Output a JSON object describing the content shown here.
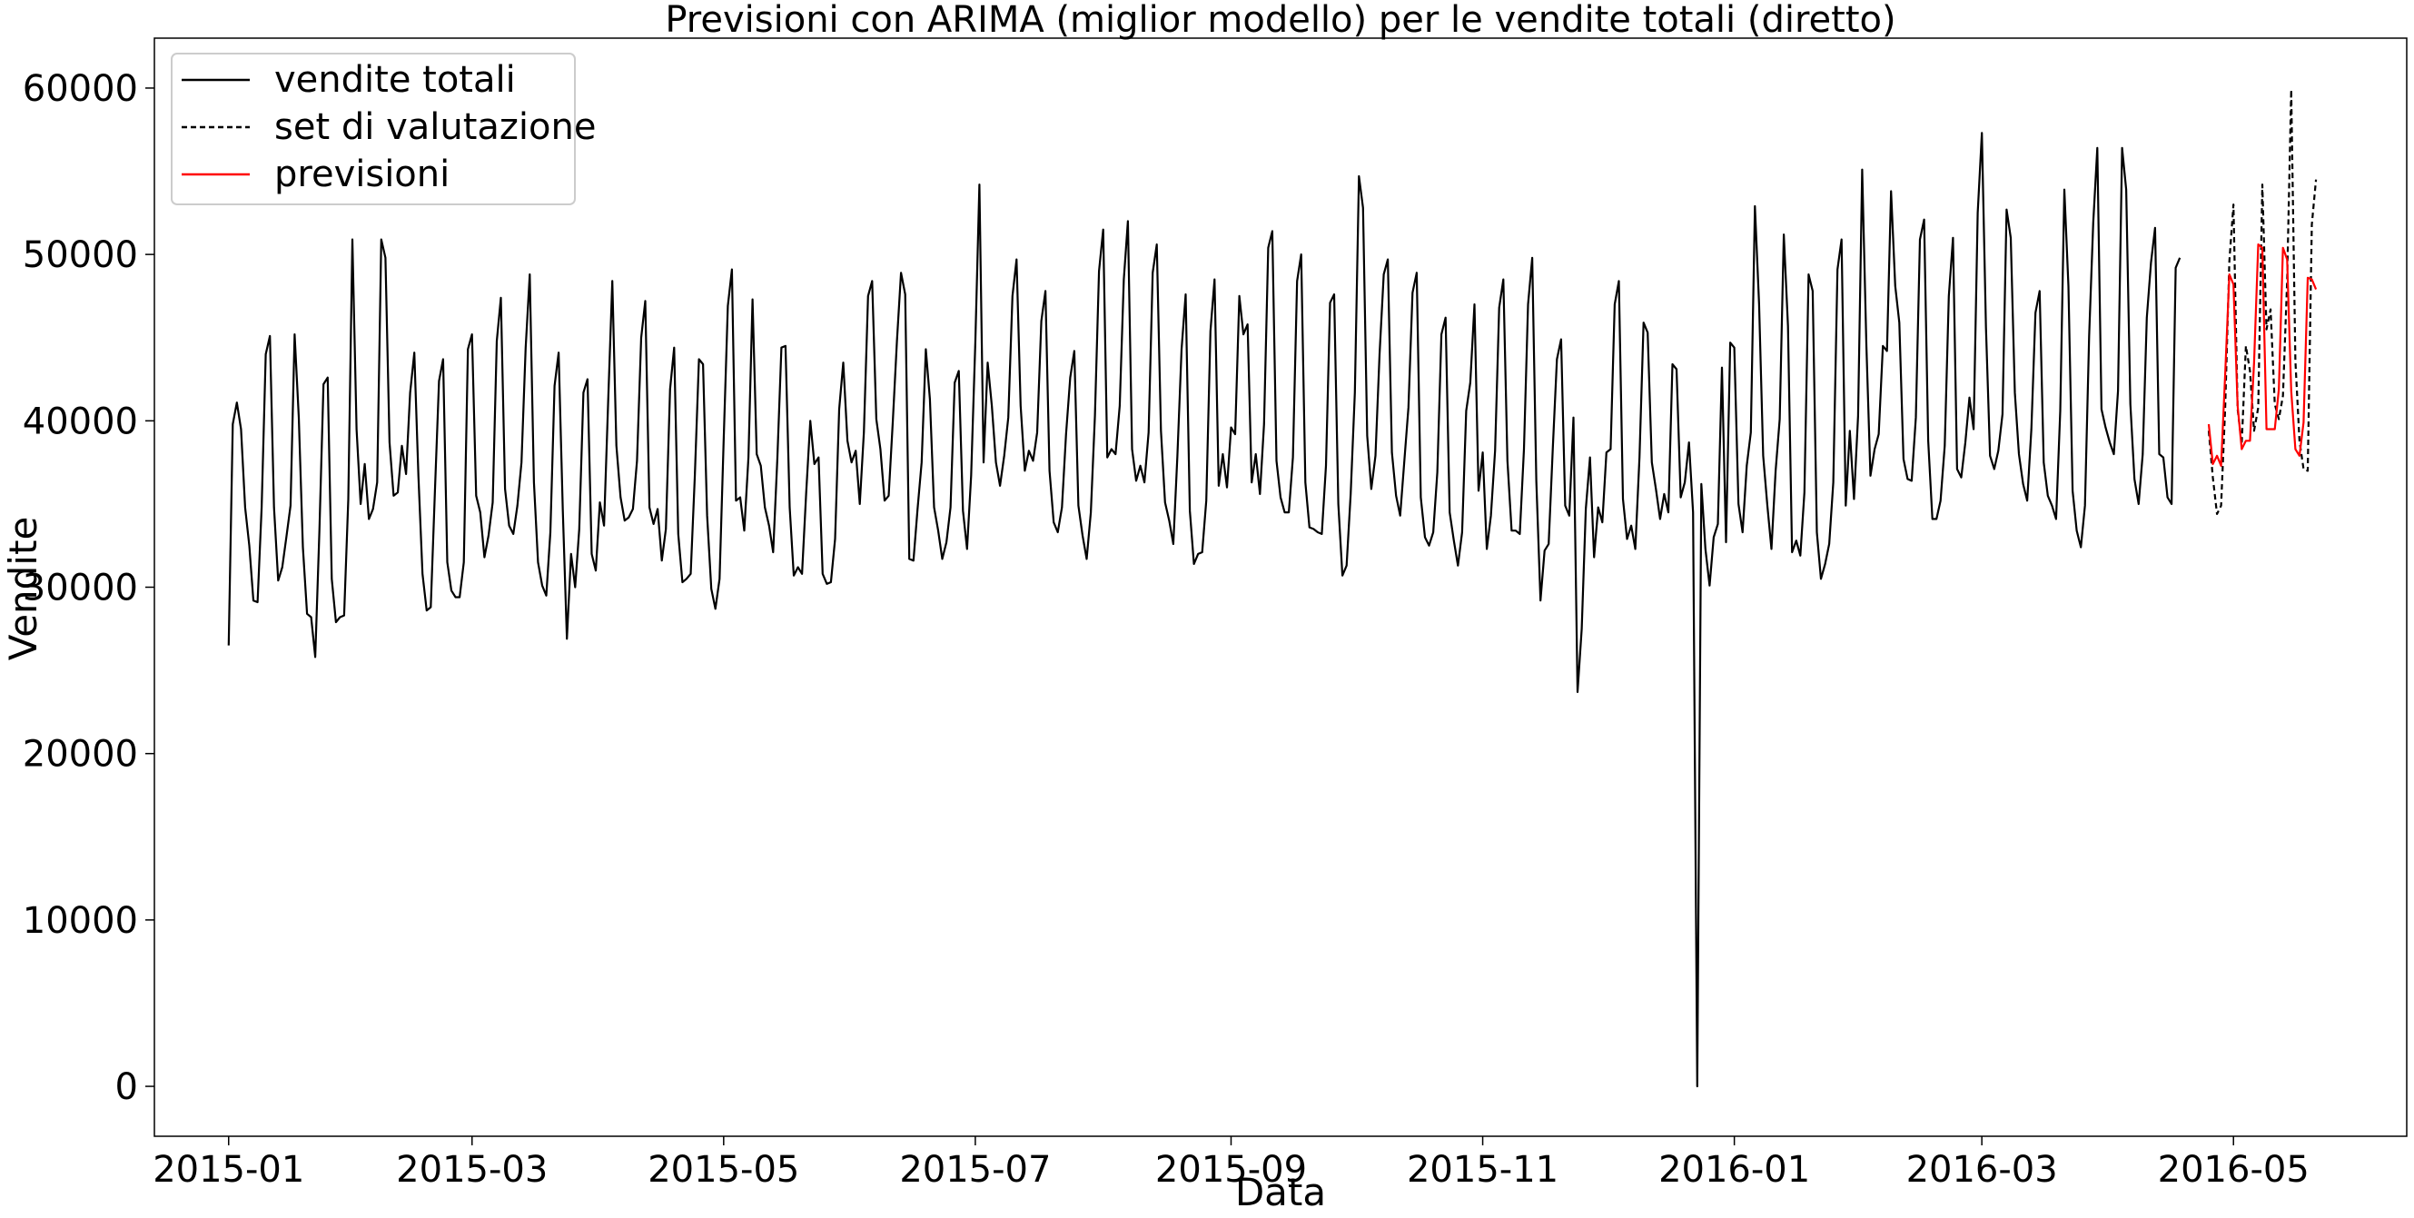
{
  "chart_data": {
    "type": "line",
    "title": "Previsioni con ARIMA (miglior modello) per le vendite totali (diretto)",
    "xlabel": "Data",
    "ylabel": "Vendite",
    "ylim": [
      -3000,
      63000
    ],
    "xlim": [
      "2014-12-14",
      "2016-06-12"
    ],
    "yticks": [
      0,
      10000,
      20000,
      30000,
      40000,
      50000,
      60000
    ],
    "xticks": [
      "2015-01",
      "2015-03",
      "2015-05",
      "2015-07",
      "2015-09",
      "2015-11",
      "2016-01",
      "2016-03",
      "2016-05"
    ],
    "grid": false,
    "legend_position": "top-left",
    "series": [
      {
        "name": "vendite totali",
        "color": "#000000",
        "style": "solid",
        "x_start": "2015-01-01",
        "step": "1 day",
        "values": [
          26500,
          39800,
          41100,
          39500,
          34800,
          32500,
          29200,
          29100,
          34800,
          44000,
          45100,
          34800,
          30400,
          31200,
          33000,
          34900,
          45200,
          40200,
          32400,
          28400,
          28200,
          25800,
          33400,
          42200,
          42600,
          30500,
          27900,
          28200,
          28300,
          35300,
          50900,
          39500,
          35000,
          37400,
          34100,
          34700,
          36300,
          50900,
          49800,
          38700,
          35500,
          35700,
          38500,
          36800,
          41700,
          44100,
          36700,
          30800,
          28600,
          28800,
          35800,
          42400,
          43700,
          31500,
          29800,
          29400,
          29400,
          31500,
          44300,
          45200,
          35500,
          34500,
          31800,
          33100,
          35100,
          44800,
          47400,
          35900,
          33700,
          33200,
          34900,
          37500,
          44400,
          48800,
          36300,
          31500,
          30100,
          29500,
          33300,
          42100,
          44100,
          34600,
          26900,
          32000,
          30000,
          33500,
          41700,
          42500,
          32000,
          31000,
          35100,
          33700,
          41100,
          48400,
          38500,
          35400,
          34000,
          34200,
          34700,
          37600,
          45000,
          47200,
          34800,
          33800,
          34700,
          31600,
          33500,
          41900,
          44400,
          33200,
          30300,
          30500,
          30800,
          36600,
          43700,
          43400,
          34300,
          29900,
          28700,
          30500,
          38800,
          46900,
          49100,
          35200,
          35400,
          33400,
          37800,
          47300,
          38000,
          37300,
          34800,
          33700,
          32100,
          37700,
          44400,
          44500,
          34800,
          30700,
          31200,
          30800,
          35700,
          40000,
          37400,
          37800,
          30800,
          30200,
          30300,
          32900,
          40700,
          43500,
          38800,
          37500,
          38200,
          35000,
          39300,
          47500,
          48400,
          40100,
          38300,
          35200,
          35500,
          39900,
          44800,
          48900,
          47600,
          31700,
          31600,
          34700,
          37500,
          44300,
          41300,
          34800,
          33400,
          31700,
          32700,
          34800,
          42300,
          43000,
          34600,
          32300,
          36700,
          44700,
          54200,
          37500,
          43500,
          40900,
          37500,
          36100,
          37900,
          40200,
          47500,
          49700,
          40900,
          37000,
          38200,
          37600,
          39300,
          46000,
          47800,
          37000,
          33900,
          33300,
          34800,
          39200,
          42600,
          44200,
          34900,
          33100,
          31700,
          34500,
          40300,
          49000,
          51500,
          37800,
          38300,
          38000,
          40900,
          48500,
          52000,
          38300,
          36400,
          37300,
          36300,
          39300,
          48900,
          50600,
          39400,
          35100,
          34000,
          32600,
          37900,
          44300,
          47600,
          34600,
          31400,
          32000,
          32100,
          35200,
          45400,
          48500,
          36100,
          38000,
          36000,
          39600,
          39200,
          47500,
          45200,
          45800,
          36300,
          38000,
          35600,
          39800,
          50400,
          51400,
          37600,
          35400,
          34500,
          34500,
          37800,
          48400,
          50000,
          36300,
          33600,
          33500,
          33300,
          33200,
          37300,
          47100,
          47600,
          35000,
          30700,
          31300,
          35600,
          41700,
          54700,
          52800,
          39100,
          35900,
          37900,
          44000,
          48800,
          49700,
          38100,
          35500,
          34300,
          37600,
          40800,
          47700,
          48900,
          35400,
          33000,
          32500,
          33300,
          36900,
          45200,
          46200,
          34500,
          32800,
          31300,
          33300,
          40600,
          42300,
          47000,
          35800,
          38100,
          32300,
          34300,
          38200,
          46800,
          48500,
          37600,
          33400,
          33400,
          33200,
          38300,
          47000,
          49800,
          36400,
          29200,
          32200,
          32600,
          38400,
          43700,
          44900,
          34900,
          34300,
          40200,
          23700,
          27500,
          34700,
          37800,
          31800,
          34800,
          33900,
          38100,
          38300,
          47000,
          48400,
          35300,
          32900,
          33700,
          32300,
          37800,
          45900,
          45300,
          37500,
          35900,
          34100,
          35600,
          34500,
          43400,
          43100,
          35400,
          36300,
          38700,
          34500,
          0,
          36200,
          32300,
          30100,
          33000,
          33800,
          43200,
          32700,
          44700,
          44400,
          35000,
          33300,
          37300,
          39300,
          52900,
          47000,
          37900,
          34900,
          32300,
          37000,
          40100,
          51200,
          45700,
          32100,
          32800,
          31900,
          35700,
          48800,
          47800,
          33300,
          30500,
          31400,
          32600,
          36300,
          49100,
          50900,
          34900,
          39400,
          35300,
          40300,
          55100,
          44600,
          36700,
          38300,
          39200,
          44500,
          44200,
          53800,
          48100,
          45900,
          37700,
          36500,
          36400,
          40200,
          50900,
          52100,
          38800,
          34100,
          34100,
          35200,
          38500,
          47500,
          51000,
          37100,
          36600,
          38700,
          41400,
          39500,
          52500,
          57300,
          45600,
          37900,
          37100,
          38200,
          40400,
          52700,
          51000,
          41700,
          38000,
          36200,
          35200,
          39500,
          46500,
          47800,
          37500,
          35500,
          34900,
          34100,
          40600,
          53900,
          48100,
          35800,
          33400,
          32400,
          34900,
          45100,
          51900,
          56400,
          40700,
          39600,
          38700,
          38000,
          41800,
          56400,
          53900,
          41000,
          36500,
          35000,
          38000,
          46200,
          49500,
          51600,
          38000,
          37800,
          35400,
          35000,
          49200,
          49800
        ]
      },
      {
        "name": "set di valutazione",
        "color": "#000000",
        "style": "dashed",
        "x_start": "2016-04-25",
        "step": "1 day",
        "values": [
          39400,
          36600,
          34400,
          34900,
          40800,
          49600,
          53000,
          40700,
          38600,
          44500,
          43000,
          39400,
          40800,
          54200,
          45500,
          46700,
          41000,
          40100,
          41500,
          48400,
          59900,
          43600,
          38800,
          37100,
          37000,
          51800,
          54500
        ]
      },
      {
        "name": "previsioni",
        "color": "#ff0000",
        "style": "solid",
        "x_start": "2016-04-25",
        "step": "1 day",
        "values": [
          39800,
          37400,
          37900,
          37300,
          42800,
          48800,
          48200,
          40900,
          38300,
          38800,
          38800,
          43500,
          50600,
          50400,
          39500,
          39500,
          39500,
          41900,
          50400,
          49700,
          41800,
          38300,
          37900,
          39900,
          48600,
          48500,
          47900
        ]
      }
    ]
  }
}
